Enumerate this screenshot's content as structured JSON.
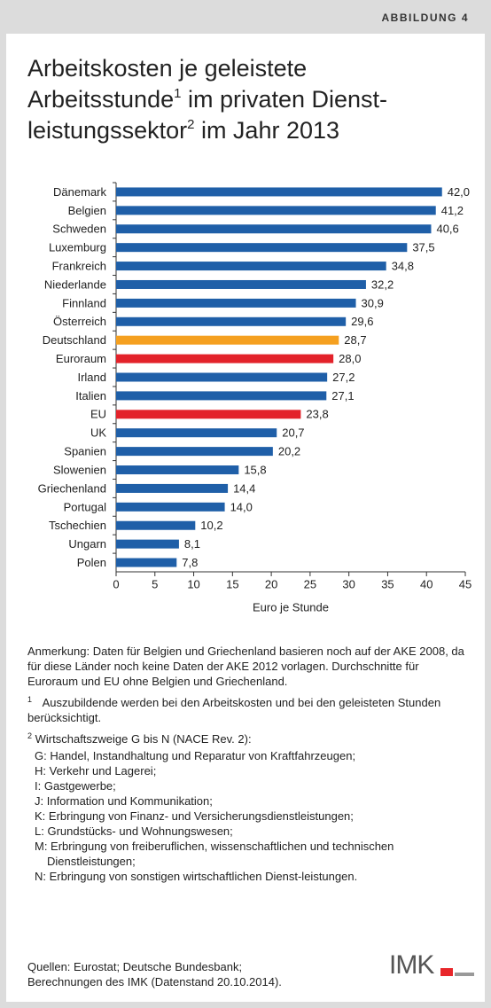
{
  "header": "ABBILDUNG 4",
  "chart_data": {
    "type": "hbar",
    "title": [
      "Arbeitskosten je geleistete",
      "Arbeitsstunde",
      "1",
      " im privaten Dienst-",
      "leistungssektor",
      "2",
      " im Jahr 2013"
    ],
    "categories": [
      "Dänemark",
      "Belgien",
      "Schweden",
      "Luxemburg",
      "Frankreich",
      "Niederlande",
      "Finnland",
      "Österreich",
      "Deutschland",
      "Euroraum",
      "Irland",
      "Italien",
      "EU",
      "UK",
      "Spanien",
      "Slowenien",
      "Griechenland",
      "Portugal",
      "Tschechien",
      "Ungarn",
      "Polen"
    ],
    "values": [
      42.0,
      41.2,
      40.6,
      37.5,
      34.8,
      32.2,
      30.9,
      29.6,
      28.7,
      28.0,
      27.2,
      27.1,
      23.8,
      20.7,
      20.2,
      15.8,
      14.4,
      14.0,
      10.2,
      8.1,
      7.8
    ],
    "value_labels": [
      "42,0",
      "41,2",
      "40,6",
      "37,5",
      "34,8",
      "32,2",
      "30,9",
      "29,6",
      "28,7",
      "28,0",
      "27,2",
      "27,1",
      "23,8",
      "20,7",
      "20,2",
      "15,8",
      "14,4",
      "14,0",
      "10,2",
      "8,1",
      "7,8"
    ],
    "colors": [
      "#1f5fa8",
      "#1f5fa8",
      "#1f5fa8",
      "#1f5fa8",
      "#1f5fa8",
      "#1f5fa8",
      "#1f5fa8",
      "#1f5fa8",
      "#f5a020",
      "#e3222a",
      "#1f5fa8",
      "#1f5fa8",
      "#e3222a",
      "#1f5fa8",
      "#1f5fa8",
      "#1f5fa8",
      "#1f5fa8",
      "#1f5fa8",
      "#1f5fa8",
      "#1f5fa8",
      "#1f5fa8"
    ],
    "xlim": [
      0,
      45
    ],
    "xticks": [
      0,
      5,
      10,
      15,
      20,
      25,
      30,
      35,
      40,
      45
    ],
    "xlabel": "Euro je Stunde",
    "grid": false
  },
  "notes": {
    "anmerkung": "Anmerkung: Daten für Belgien und Griechenland basieren noch auf der AKE 2008, da für diese Länder noch keine Daten der AKE 2012 vorlagen. Durchschnitte für Euroraum und EU ohne Belgien und Griechenland.",
    "footnote1": {
      "mark": "1",
      "text": "Auszubildende werden bei den Arbeitskosten und bei den geleisteten Stunden berücksichtigt."
    },
    "footnote2": {
      "mark": "2",
      "heading": "Wirtschaftszweige G bis N (NACE Rev. 2):",
      "items": [
        "G: Handel, Instandhaltung und Reparatur von Kraftfahrzeugen;",
        "H: Verkehr und Lagerei;",
        "I:  Gastgewerbe;",
        "J:  Information und Kommunikation;",
        "K:  Erbringung von Finanz- und Versicherungsdienstleistungen;",
        "L:  Grundstücks- und Wohnungswesen;",
        "M: Erbringung von freiberuflichen, wissenschaftlichen und technischen Dienstleistungen;",
        "N: Erbringung von sonstigen wirtschaftlichen Dienst-leistungen."
      ]
    }
  },
  "sources": [
    "Quellen: Eurostat; Deutsche Bundesbank;",
    "Berechnungen des IMK (Datenstand 20.10.2014)."
  ],
  "logo": "IMK"
}
